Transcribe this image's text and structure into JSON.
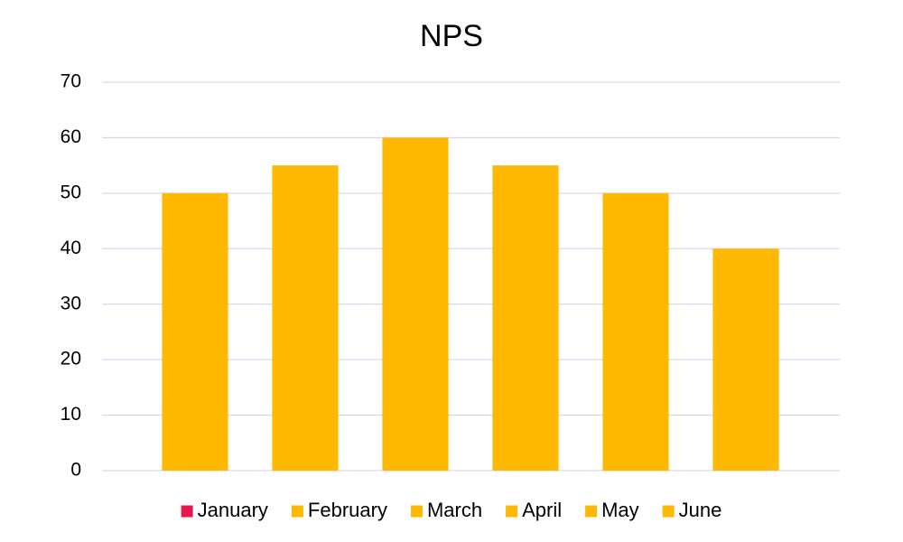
{
  "chart_data": {
    "type": "bar",
    "title": "NPS",
    "categories": [
      "January",
      "February",
      "March",
      "April",
      "May",
      "June"
    ],
    "values": [
      50,
      55,
      60,
      55,
      50,
      40
    ],
    "color": "#ffb900",
    "legend_colors": [
      "#e8174b",
      "#ffb900",
      "#ffb900",
      "#ffb900",
      "#ffb900",
      "#ffb900"
    ],
    "ylim": [
      0,
      70
    ],
    "yticks": [
      0,
      10,
      20,
      30,
      40,
      50,
      60,
      70
    ],
    "grid": true,
    "grid_color": "#dcc9ee",
    "legend": "bottom"
  }
}
